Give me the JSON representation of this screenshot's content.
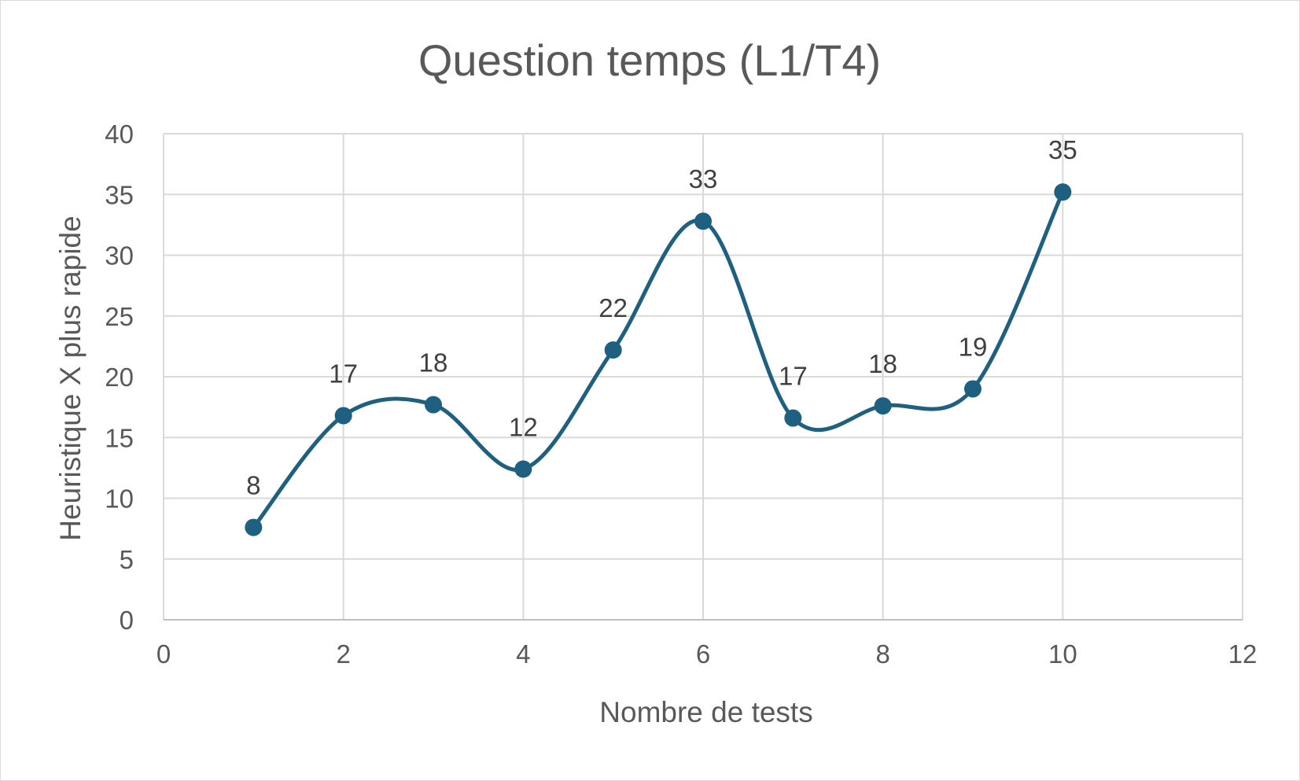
{
  "chart_data": {
    "type": "scatter",
    "title": "Question temps (L1/T4)",
    "xlabel": "Nombre de tests",
    "ylabel": "Heuristique X plus rapide",
    "xlim": [
      0,
      12
    ],
    "ylim": [
      0,
      40
    ],
    "x_ticks": [
      0,
      2,
      4,
      6,
      8,
      10,
      12
    ],
    "y_ticks": [
      0,
      5,
      10,
      15,
      20,
      25,
      30,
      35,
      40
    ],
    "grid": true,
    "smoothed_line": true,
    "legend": "none",
    "series": [
      {
        "color": "#1f5f7f",
        "x": [
          1,
          2,
          3,
          4,
          5,
          6,
          7,
          8,
          9,
          10
        ],
        "y": [
          7.6,
          16.8,
          17.7,
          12.4,
          22.2,
          32.8,
          16.6,
          17.6,
          19.0,
          35.2
        ],
        "data_labels": [
          "8",
          "17",
          "18",
          "12",
          "22",
          "33",
          "17",
          "18",
          "19",
          "35"
        ]
      }
    ]
  }
}
